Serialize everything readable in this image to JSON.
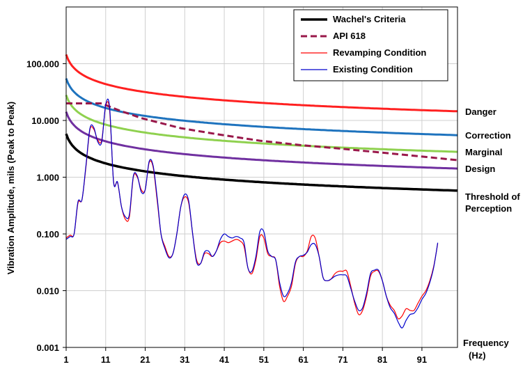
{
  "chart_data": {
    "type": "line",
    "title": "",
    "ylabel": "Vibration Amplitude, mils (Peak to Peak)",
    "xlabel": "Frequency (Hz)",
    "xlabel_lines": [
      "Frequency",
      "(Hz)"
    ],
    "xlim": [
      1,
      100
    ],
    "ylim": [
      0.001,
      1000
    ],
    "yscale": "log",
    "grid": true,
    "legend_position": "top-right",
    "x_ticks": [
      "1",
      "11",
      "21",
      "31",
      "41",
      "51",
      "61",
      "71",
      "81",
      "91"
    ],
    "x_tick_values": [
      1,
      11,
      21,
      31,
      41,
      51,
      61,
      71,
      81,
      91
    ],
    "y_ticks": [
      "0.001",
      "0.010",
      "0.100",
      "1.000",
      "10.000",
      "100.000"
    ],
    "y_tick_values": [
      0.001,
      0.01,
      0.1,
      1,
      10,
      100
    ],
    "legend": [
      {
        "label": "Wachel's Criteria",
        "color": "#000000",
        "style": "solid-thick"
      },
      {
        "label": "API 618",
        "color": "#99184a",
        "style": "dashed"
      },
      {
        "label": "Revamping Condition",
        "color": "#ff0000",
        "style": "thin"
      },
      {
        "label": "Existing Condition",
        "color": "#0000cc",
        "style": "thin"
      }
    ],
    "criteria_lines": [
      {
        "label": "Danger",
        "label_lines": [
          "Danger"
        ],
        "color": "#ff2020",
        "coef": 145
      },
      {
        "label": "Correction",
        "label_lines": [
          "Correction"
        ],
        "color": "#1e73be",
        "coef": 55
      },
      {
        "label": "Marginal",
        "label_lines": [
          "Marginal"
        ],
        "color": "#8fd14f",
        "coef": 28
      },
      {
        "label": "Design",
        "label_lines": [
          "Design"
        ],
        "color": "#7030a0",
        "coef": 14.2
      },
      {
        "label": "Threshold of Perception",
        "label_lines": [
          "Threshold of",
          "Perception"
        ],
        "color": "#000000",
        "coef": 5.8
      }
    ],
    "criteria_exponent": -0.5,
    "api618": {
      "name": "API 618",
      "color": "#99184a",
      "points": [
        [
          1,
          20
        ],
        [
          10,
          20
        ],
        [
          12,
          17.5
        ],
        [
          15,
          14.5
        ],
        [
          20,
          11
        ],
        [
          30,
          7.3
        ],
        [
          40,
          5.6
        ],
        [
          50,
          4.4
        ],
        [
          60,
          3.7
        ],
        [
          70,
          3.2
        ],
        [
          80,
          2.75
        ],
        [
          90,
          2.35
        ],
        [
          100,
          2.0
        ]
      ]
    },
    "series": [
      {
        "name": "Revamping Condition",
        "color": "#ff0000",
        "points": [
          [
            1,
            0.085
          ],
          [
            2,
            0.095
          ],
          [
            3,
            0.1
          ],
          [
            4,
            0.35
          ],
          [
            5,
            0.4
          ],
          [
            6,
            1.5
          ],
          [
            7,
            6.8
          ],
          [
            8,
            7.0
          ],
          [
            9,
            4.5
          ],
          [
            10,
            4.5
          ],
          [
            11,
            18
          ],
          [
            12,
            15
          ],
          [
            13,
            0.85
          ],
          [
            14,
            0.8
          ],
          [
            15,
            0.3
          ],
          [
            16,
            0.18
          ],
          [
            17,
            0.2
          ],
          [
            18,
            1.0
          ],
          [
            19,
            1.0
          ],
          [
            20,
            0.6
          ],
          [
            21,
            0.6
          ],
          [
            22,
            1.8
          ],
          [
            23,
            1.5
          ],
          [
            24,
            0.4
          ],
          [
            25,
            0.1
          ],
          [
            26,
            0.06
          ],
          [
            27,
            0.04
          ],
          [
            28,
            0.045
          ],
          [
            29,
            0.1
          ],
          [
            30,
            0.3
          ],
          [
            31,
            0.45
          ],
          [
            32,
            0.35
          ],
          [
            33,
            0.1
          ],
          [
            34,
            0.035
          ],
          [
            35,
            0.03
          ],
          [
            36,
            0.045
          ],
          [
            37,
            0.045
          ],
          [
            38,
            0.04
          ],
          [
            39,
            0.05
          ],
          [
            40,
            0.07
          ],
          [
            41,
            0.075
          ],
          [
            42,
            0.07
          ],
          [
            43,
            0.075
          ],
          [
            44,
            0.08
          ],
          [
            45,
            0.075
          ],
          [
            46,
            0.06
          ],
          [
            47,
            0.025
          ],
          [
            48,
            0.02
          ],
          [
            49,
            0.035
          ],
          [
            50,
            0.09
          ],
          [
            51,
            0.085
          ],
          [
            52,
            0.045
          ],
          [
            53,
            0.04
          ],
          [
            54,
            0.035
          ],
          [
            55,
            0.012
          ],
          [
            56,
            0.0065
          ],
          [
            57,
            0.008
          ],
          [
            58,
            0.012
          ],
          [
            59,
            0.03
          ],
          [
            60,
            0.04
          ],
          [
            61,
            0.04
          ],
          [
            62,
            0.05
          ],
          [
            63,
            0.09
          ],
          [
            64,
            0.085
          ],
          [
            65,
            0.04
          ],
          [
            66,
            0.017
          ],
          [
            67,
            0.015
          ],
          [
            68,
            0.016
          ],
          [
            69,
            0.02
          ],
          [
            70,
            0.022
          ],
          [
            71,
            0.022
          ],
          [
            72,
            0.022
          ],
          [
            73,
            0.012
          ],
          [
            74,
            0.006
          ],
          [
            75,
            0.0038
          ],
          [
            76,
            0.0045
          ],
          [
            77,
            0.008
          ],
          [
            78,
            0.018
          ],
          [
            79,
            0.022
          ],
          [
            80,
            0.022
          ],
          [
            81,
            0.015
          ],
          [
            82,
            0.008
          ],
          [
            83,
            0.0055
          ],
          [
            84,
            0.0045
          ],
          [
            85,
            0.0032
          ],
          [
            86,
            0.0036
          ],
          [
            87,
            0.0048
          ],
          [
            88,
            0.0045
          ],
          [
            89,
            0.0045
          ],
          [
            90,
            0.006
          ],
          [
            91,
            0.008
          ],
          [
            92,
            0.01
          ],
          [
            93,
            0.015
          ],
          [
            94,
            0.027
          ],
          [
            95,
            0.068
          ]
        ]
      },
      {
        "name": "Existing Condition",
        "color": "#0000cc",
        "points": [
          [
            1,
            0.08
          ],
          [
            2,
            0.09
          ],
          [
            3,
            0.1
          ],
          [
            4,
            0.37
          ],
          [
            5,
            0.4
          ],
          [
            6,
            1.6
          ],
          [
            7,
            7.2
          ],
          [
            8,
            7.5
          ],
          [
            9,
            4.2
          ],
          [
            10,
            4.2
          ],
          [
            11,
            19
          ],
          [
            12,
            17
          ],
          [
            13,
            0.82
          ],
          [
            14,
            0.82
          ],
          [
            15,
            0.3
          ],
          [
            16,
            0.2
          ],
          [
            17,
            0.22
          ],
          [
            18,
            1.05
          ],
          [
            19,
            1.05
          ],
          [
            20,
            0.55
          ],
          [
            21,
            0.6
          ],
          [
            22,
            1.9
          ],
          [
            23,
            1.6
          ],
          [
            24,
            0.45
          ],
          [
            25,
            0.1
          ],
          [
            26,
            0.055
          ],
          [
            27,
            0.038
          ],
          [
            28,
            0.045
          ],
          [
            29,
            0.1
          ],
          [
            30,
            0.3
          ],
          [
            31,
            0.5
          ],
          [
            32,
            0.38
          ],
          [
            33,
            0.1
          ],
          [
            34,
            0.032
          ],
          [
            35,
            0.03
          ],
          [
            36,
            0.048
          ],
          [
            37,
            0.05
          ],
          [
            38,
            0.04
          ],
          [
            39,
            0.05
          ],
          [
            40,
            0.08
          ],
          [
            41,
            0.1
          ],
          [
            42,
            0.09
          ],
          [
            43,
            0.085
          ],
          [
            44,
            0.09
          ],
          [
            45,
            0.085
          ],
          [
            46,
            0.07
          ],
          [
            47,
            0.025
          ],
          [
            48,
            0.022
          ],
          [
            49,
            0.04
          ],
          [
            50,
            0.11
          ],
          [
            51,
            0.11
          ],
          [
            52,
            0.05
          ],
          [
            53,
            0.04
          ],
          [
            54,
            0.035
          ],
          [
            55,
            0.014
          ],
          [
            56,
            0.008
          ],
          [
            57,
            0.009
          ],
          [
            58,
            0.014
          ],
          [
            59,
            0.032
          ],
          [
            60,
            0.04
          ],
          [
            61,
            0.042
          ],
          [
            62,
            0.048
          ],
          [
            63,
            0.065
          ],
          [
            64,
            0.065
          ],
          [
            65,
            0.04
          ],
          [
            66,
            0.017
          ],
          [
            67,
            0.015
          ],
          [
            68,
            0.016
          ],
          [
            69,
            0.018
          ],
          [
            70,
            0.019
          ],
          [
            71,
            0.019
          ],
          [
            72,
            0.018
          ],
          [
            73,
            0.011
          ],
          [
            74,
            0.0065
          ],
          [
            75,
            0.0045
          ],
          [
            76,
            0.005
          ],
          [
            77,
            0.009
          ],
          [
            78,
            0.02
          ],
          [
            79,
            0.023
          ],
          [
            80,
            0.023
          ],
          [
            81,
            0.015
          ],
          [
            82,
            0.008
          ],
          [
            83,
            0.005
          ],
          [
            84,
            0.004
          ],
          [
            85,
            0.0028
          ],
          [
            86,
            0.0022
          ],
          [
            87,
            0.003
          ],
          [
            88,
            0.0038
          ],
          [
            89,
            0.004
          ],
          [
            90,
            0.005
          ],
          [
            91,
            0.007
          ],
          [
            92,
            0.009
          ],
          [
            93,
            0.014
          ],
          [
            94,
            0.026
          ],
          [
            95,
            0.07
          ]
        ]
      }
    ]
  }
}
